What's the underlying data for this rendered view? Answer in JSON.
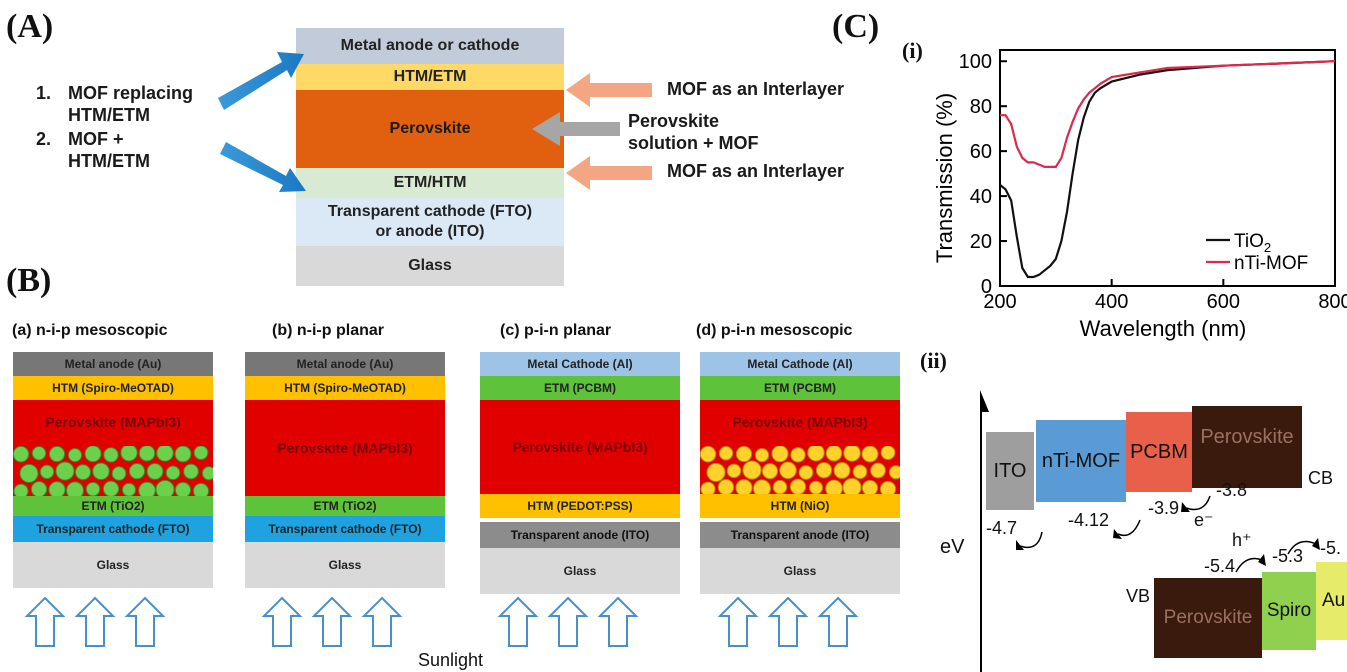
{
  "panelA": {
    "letter": "(A)",
    "layers": [
      "Metal anode or cathode",
      "HTM/ETM",
      "Perovskite",
      "ETM/HTM",
      "Transparent cathode (FTO)\nor anode (ITO)",
      "Glass"
    ],
    "list": [
      {
        "num": "1.",
        "text": "MOF replacing\nHTM/ETM"
      },
      {
        "num": "2.",
        "text": "MOF +\nHTM/ETM"
      }
    ],
    "right_top": "MOF as an Interlayer",
    "right_mid": "Perovskite\nsolution + MOF",
    "right_bottom": "MOF as an Interlayer"
  },
  "panelB": {
    "letter": "(B)",
    "devices": [
      {
        "title": "(a) n-i-p mesoscopic",
        "layers": [
          "Metal anode (Au)",
          "HTM (Spiro-MeOTAD)",
          "Perovskite (MAPbI3)",
          "ETM (TiO2)",
          "Transparent cathode (FTO)",
          "Glass"
        ]
      },
      {
        "title": "(b) n-i-p planar",
        "layers": [
          "Metal anode (Au)",
          "HTM (Spiro-MeOTAD)",
          "Perovskite (MAPbI3)",
          "ETM (TiO2)",
          "Transparent cathode (FTO)",
          "Glass"
        ]
      },
      {
        "title": "(c) p-i-n planar",
        "layers": [
          "Metal Cathode (Al)",
          "ETM (PCBM)",
          "Perovskite (MAPbI3)",
          "HTM (PEDOT:PSS)",
          "Transparent anode (ITO)",
          "Glass"
        ]
      },
      {
        "title": "(d) p-i-n mesoscopic",
        "layers": [
          "Metal Cathode (Al)",
          "ETM (PCBM)",
          "Perovskite (MAPbI3)",
          "HTM (NiO)",
          "Transparent anode (ITO)",
          "Glass"
        ]
      }
    ],
    "sunlight": "Sunlight"
  },
  "panelC": {
    "letter": "(C)",
    "sub_i": "(i)",
    "sub_ii": "(ii)",
    "colors": {
      "tio2": "#111111",
      "mof": "#e0284a"
    }
  },
  "chart_data": {
    "type": "line",
    "xlabel": "Wavelength (nm)",
    "ylabel": "Transmission (%)",
    "xlim": [
      200,
      800
    ],
    "ylim": [
      0,
      105
    ],
    "xticks": [
      200,
      400,
      600,
      800
    ],
    "yticks": [
      0,
      20,
      40,
      60,
      80,
      100
    ],
    "legend_position": "bottom-right",
    "series": [
      {
        "name": "TiO2",
        "color": "#111111",
        "x": [
          200,
          210,
          220,
          230,
          240,
          250,
          260,
          270,
          280,
          290,
          300,
          310,
          320,
          330,
          340,
          350,
          360,
          370,
          380,
          400,
          450,
          500,
          600,
          700,
          800
        ],
        "y": [
          45,
          43,
          38,
          22,
          8,
          4,
          4,
          5,
          7,
          9,
          12,
          20,
          33,
          50,
          65,
          75,
          82,
          86,
          88,
          91,
          94,
          96,
          98,
          99,
          100
        ]
      },
      {
        "name": "nTi-MOF",
        "color": "#e0284a",
        "x": [
          200,
          210,
          220,
          230,
          240,
          250,
          260,
          270,
          280,
          290,
          300,
          310,
          320,
          330,
          340,
          350,
          360,
          370,
          380,
          400,
          450,
          500,
          600,
          700,
          800
        ],
        "y": [
          76,
          76,
          72,
          62,
          57,
          55,
          55,
          54,
          53,
          53,
          53,
          57,
          66,
          73,
          79,
          83,
          86,
          88,
          90,
          93,
          95,
          97,
          98,
          99,
          100
        ]
      }
    ]
  },
  "energy": {
    "y_label": "eV",
    "cb": "CB",
    "vb": "VB",
    "boxes": [
      {
        "label": "ITO",
        "color": "#9e9e9e"
      },
      {
        "label": "nTi-MOF",
        "color": "#5b9bd5"
      },
      {
        "label": "PCBM",
        "color": "#e8604a"
      },
      {
        "label": "Perovskite",
        "color": "#3b1a0e"
      },
      {
        "label": "Perovskite",
        "color": "#3b1a0e"
      },
      {
        "label": "Spiro",
        "color": "#8fd14f"
      },
      {
        "label": "Au",
        "color": "#e6ec6a"
      }
    ],
    "values": [
      "-4.7",
      "-4.12",
      "-3.9",
      "-3.8",
      "-5.4",
      "-5.3",
      "-5."
    ],
    "electron": "e⁻",
    "hole": "h⁺"
  }
}
